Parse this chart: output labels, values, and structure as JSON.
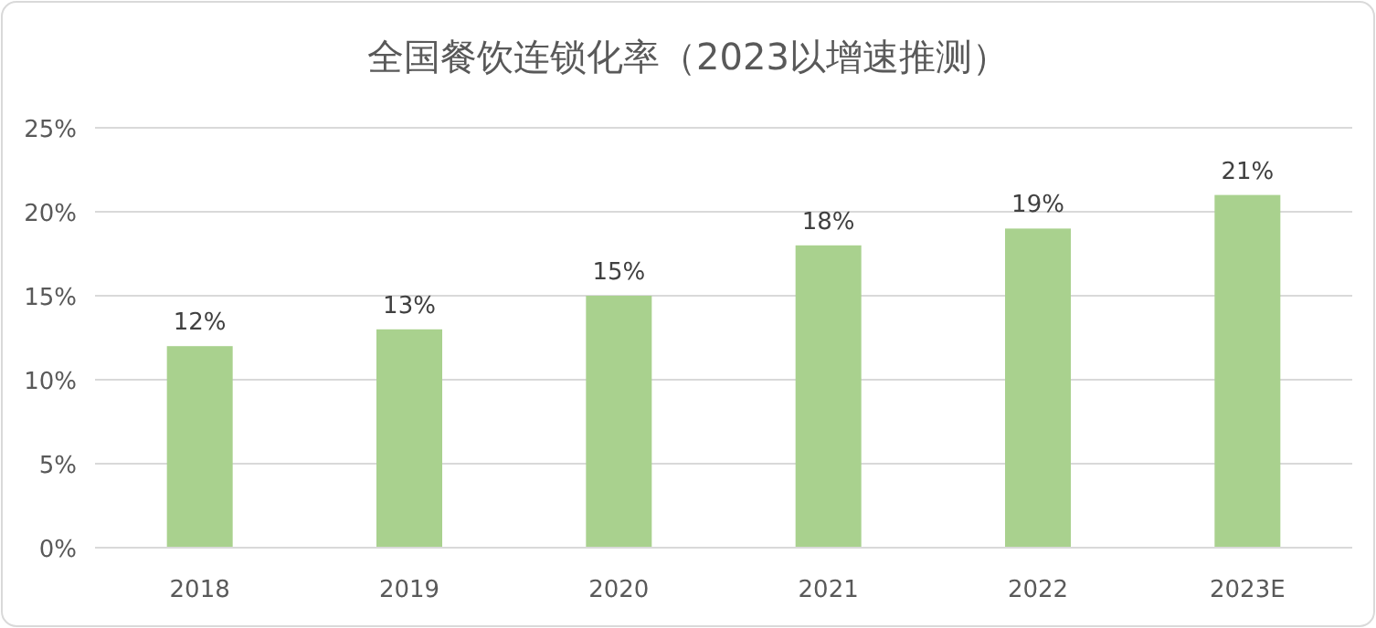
{
  "chart_data": {
    "type": "bar",
    "title": "全国餐饮连锁化率（2023以增速推测）",
    "categories": [
      "2018",
      "2019",
      "2020",
      "2021",
      "2022",
      "2023E"
    ],
    "values": [
      12,
      13,
      15,
      18,
      19,
      21
    ],
    "value_labels": [
      "12%",
      "13%",
      "15%",
      "18%",
      "19%",
      "21%"
    ],
    "color": "#a9d18e",
    "ylim": [
      0,
      25
    ],
    "yticks": [
      {
        "value": 0,
        "label": "0%"
      },
      {
        "value": 5,
        "label": "5%"
      },
      {
        "value": 10,
        "label": "10%"
      },
      {
        "value": 15,
        "label": "15%"
      },
      {
        "value": 20,
        "label": "20%"
      },
      {
        "value": 25,
        "label": "25%"
      }
    ],
    "grid": "y"
  }
}
